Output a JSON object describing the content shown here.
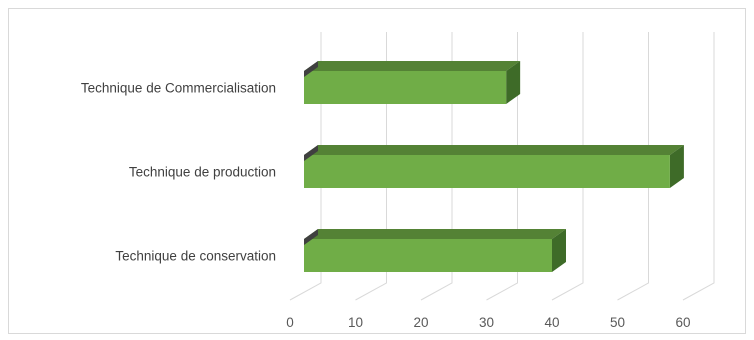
{
  "chart_data": {
    "type": "bar",
    "orientation": "horizontal",
    "style": "3d",
    "categories": [
      "Technique de Commercialisation",
      "Technique de production",
      "Technique de conservation"
    ],
    "values": [
      33,
      58,
      40
    ],
    "xlim": [
      0,
      60
    ],
    "x_ticks": [
      "0",
      "10",
      "20",
      "30",
      "40",
      "50",
      "60"
    ],
    "title": "",
    "xlabel": "",
    "ylabel": "",
    "grid": true,
    "legend": "none",
    "colors": {
      "bar_front": "#70ad47",
      "bar_top": "#548235",
      "bar_side": "#3e6b28",
      "grid": "#d9d9d9"
    }
  }
}
